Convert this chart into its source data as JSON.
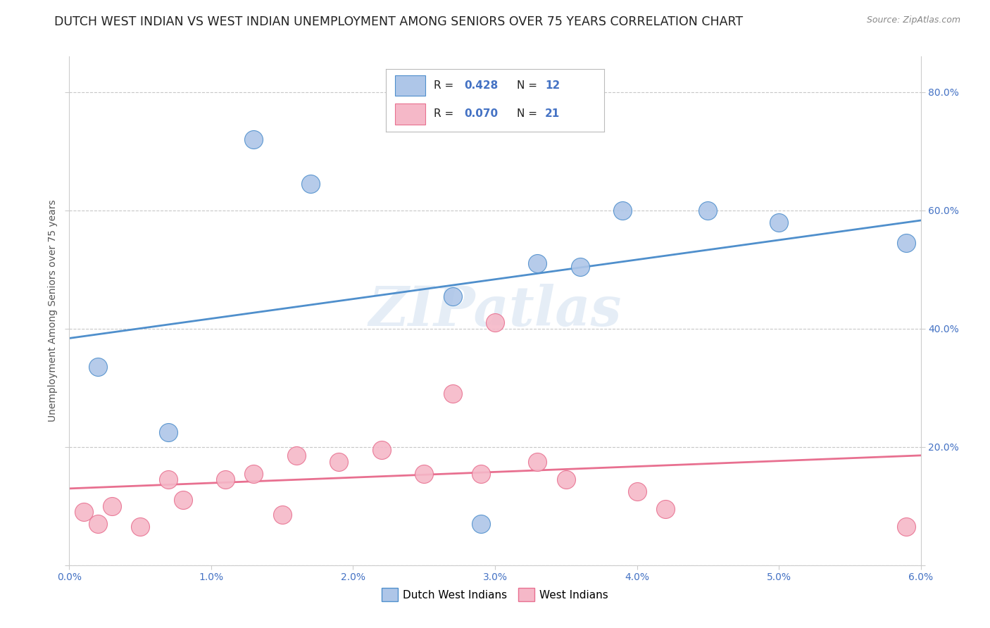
{
  "title": "DUTCH WEST INDIAN VS WEST INDIAN UNEMPLOYMENT AMONG SENIORS OVER 75 YEARS CORRELATION CHART",
  "source": "Source: ZipAtlas.com",
  "xlabel": "",
  "ylabel": "Unemployment Among Seniors over 75 years",
  "xlim": [
    0.0,
    0.06
  ],
  "ylim": [
    0.0,
    0.86
  ],
  "xticks": [
    0.0,
    0.01,
    0.02,
    0.03,
    0.04,
    0.05,
    0.06
  ],
  "xticklabels": [
    "0.0%",
    "1.0%",
    "2.0%",
    "3.0%",
    "4.0%",
    "5.0%",
    "6.0%"
  ],
  "yticks": [
    0.0,
    0.2,
    0.4,
    0.6,
    0.8
  ],
  "yticklabels": [
    "",
    "20.0%",
    "40.0%",
    "60.0%",
    "80.0%"
  ],
  "blue_R": 0.428,
  "blue_N": 12,
  "pink_R": 0.07,
  "pink_N": 21,
  "blue_color": "#aec6e8",
  "pink_color": "#f5b8c8",
  "blue_line_color": "#4f8fcc",
  "pink_line_color": "#e87090",
  "watermark": "ZIPatlas",
  "blue_x": [
    0.002,
    0.007,
    0.013,
    0.017,
    0.027,
    0.029,
    0.033,
    0.036,
    0.039,
    0.045,
    0.05,
    0.059
  ],
  "blue_y": [
    0.335,
    0.225,
    0.72,
    0.645,
    0.455,
    0.07,
    0.51,
    0.505,
    0.6,
    0.6,
    0.58,
    0.545
  ],
  "pink_x": [
    0.001,
    0.002,
    0.003,
    0.005,
    0.007,
    0.008,
    0.011,
    0.013,
    0.015,
    0.016,
    0.019,
    0.022,
    0.025,
    0.027,
    0.029,
    0.03,
    0.033,
    0.035,
    0.04,
    0.042,
    0.059
  ],
  "pink_y": [
    0.09,
    0.07,
    0.1,
    0.065,
    0.145,
    0.11,
    0.145,
    0.155,
    0.085,
    0.185,
    0.175,
    0.195,
    0.155,
    0.29,
    0.155,
    0.41,
    0.175,
    0.145,
    0.125,
    0.095,
    0.065
  ],
  "background_color": "#ffffff",
  "grid_color": "#c8c8c8",
  "title_fontsize": 12.5,
  "axis_label_fontsize": 10,
  "tick_fontsize": 10,
  "legend_fontsize": 11
}
